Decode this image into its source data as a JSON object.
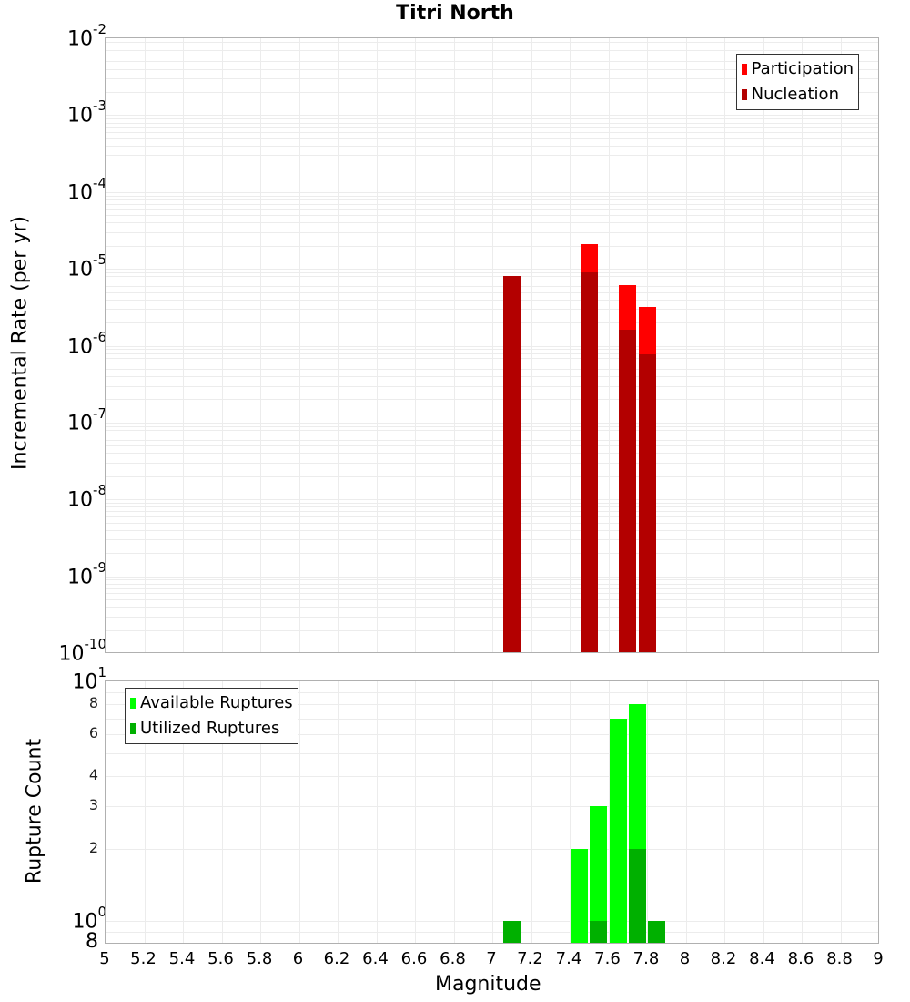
{
  "chart_data": [
    {
      "type": "bar",
      "title": "Titri North",
      "xlabel": "Magnitude",
      "ylabel": "Incremental Rate (per yr)",
      "yscale": "log",
      "ylim": [
        1e-10,
        0.01
      ],
      "xlim": [
        5,
        9
      ],
      "grid": true,
      "legend_position": "top-right",
      "x": [
        7.1,
        7.5,
        7.7,
        7.8
      ],
      "series": [
        {
          "name": "Participation",
          "color": "#ff0000",
          "values": [
            8e-06,
            2.1e-05,
            6.1e-06,
            3.2e-06
          ]
        },
        {
          "name": "Nucleation",
          "color": "#b30000",
          "values": [
            8e-06,
            8.9e-06,
            1.6e-06,
            7.7e-07
          ]
        }
      ],
      "yticks": [
        "10^-2",
        "10^-3",
        "10^-4",
        "10^-5",
        "10^-6",
        "10^-7",
        "10^-8",
        "10^-9",
        "10^-10"
      ]
    },
    {
      "type": "bar",
      "title": "",
      "xlabel": "Magnitude",
      "ylabel": "Rupture Count",
      "yscale": "log",
      "ylim": [
        0.8,
        10
      ],
      "xlim": [
        5,
        9
      ],
      "grid": true,
      "legend_position": "top-left",
      "x": [
        7.1,
        7.45,
        7.55,
        7.65,
        7.75,
        7.85
      ],
      "series": [
        {
          "name": "Available Ruptures",
          "color": "#00ff00",
          "values": [
            1,
            2,
            3,
            7,
            8,
            1
          ]
        },
        {
          "name": "Utilized Ruptures",
          "color": "#00b000",
          "values": [
            1,
            0,
            1,
            0,
            2,
            1
          ]
        }
      ],
      "yticks": [
        "10^1",
        "8",
        "6",
        "4",
        "3",
        "2",
        "10^0",
        "8"
      ],
      "xticks": [
        "5",
        "5.2",
        "5.4",
        "5.6",
        "5.8",
        "6",
        "6.2",
        "6.4",
        "6.6",
        "6.8",
        "7",
        "7.2",
        "7.4",
        "7.6",
        "7.8",
        "8",
        "8.2",
        "8.4",
        "8.6",
        "8.8",
        "9"
      ]
    }
  ],
  "title": "Titri North",
  "top": {
    "ylabel": "Incremental Rate (per yr)",
    "legend": [
      {
        "label": "Participation",
        "color": "#ff0000"
      },
      {
        "label": "Nucleation",
        "color": "#b30000"
      }
    ],
    "yticks": [
      {
        "base": "10",
        "exp": "-2"
      },
      {
        "base": "10",
        "exp": "-3"
      },
      {
        "base": "10",
        "exp": "-4"
      },
      {
        "base": "10",
        "exp": "-5"
      },
      {
        "base": "10",
        "exp": "-6"
      },
      {
        "base": "10",
        "exp": "-7"
      },
      {
        "base": "10",
        "exp": "-8"
      },
      {
        "base": "10",
        "exp": "-9"
      },
      {
        "base": "10",
        "exp": "-10"
      }
    ]
  },
  "bottom": {
    "ylabel": "Rupture Count",
    "xlabel": "Magnitude",
    "legend": [
      {
        "label": "Available Ruptures",
        "color": "#00ff00"
      },
      {
        "label": "Utilized Ruptures",
        "color": "#00b000"
      }
    ]
  }
}
